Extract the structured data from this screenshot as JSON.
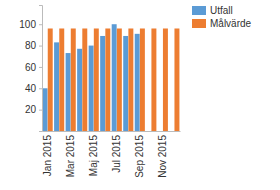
{
  "chart_data": {
    "type": "bar",
    "categories": [
      "Jan 2015",
      null,
      "Mar 2015",
      null,
      "Maj 2015",
      null,
      "Jul 2015",
      null,
      "Sep 2015",
      null,
      "Nov 2015",
      null
    ],
    "series": [
      {
        "name": "Utfall",
        "color": "#5b9bd5",
        "values": [
          40,
          83,
          73,
          77,
          80,
          89,
          100,
          89,
          91,
          null,
          null,
          null
        ]
      },
      {
        "name": "Målvärde",
        "color": "#ed7d31",
        "values": [
          96,
          96,
          96,
          96,
          96,
          96,
          96,
          96,
          96,
          96,
          96,
          96
        ]
      }
    ],
    "ylim": [
      0,
      118
    ],
    "yticks": [
      20,
      40,
      60,
      80,
      100
    ],
    "legend": "right"
  }
}
